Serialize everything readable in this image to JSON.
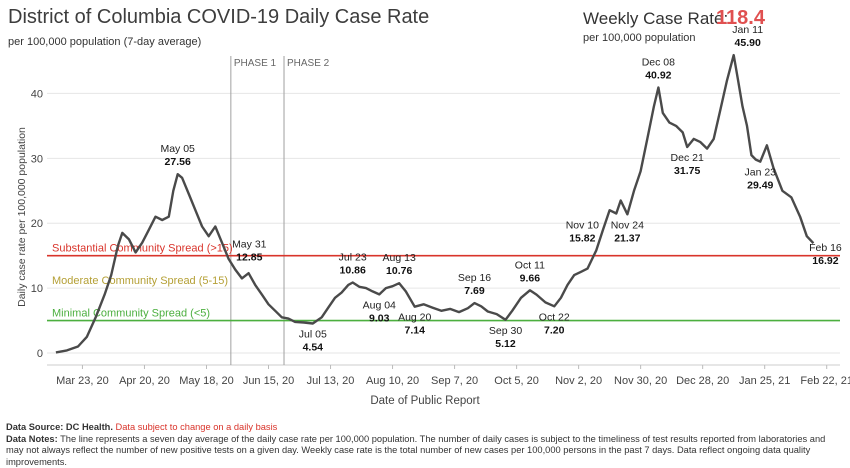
{
  "header": {
    "title": "District of Columbia COVID-19 Daily Case Rate",
    "subtitle": "per 100,000 population (7-day average)",
    "weekly_label": "Weekly Case Rate:",
    "weekly_value": "118.4",
    "weekly_sub": "per 100,000 population"
  },
  "notes": {
    "source_label": "Data Source: DC Health.",
    "source_warning": "Data subject to change on a daily basis",
    "notes_label": "Data Notes:",
    "notes_text": "The line represents a seven day average of the daily case rate per 100,000 population. The number of daily cases is subject to the timeliness of test results reported from laboratories and may not always reflect the number of new positive tests on a given day. Weekly case rate is the total number of new cases per 100,000 persons in the past 7 days. Data reflect ongoing data quality improvements."
  },
  "colors": {
    "line": "#4a4a4a",
    "substantial": "#d9342b",
    "moderate": "#b5a036",
    "minimal": "#4caf3f",
    "phase": "#a0a0a0",
    "axis_text": "#444444"
  },
  "chart_data": {
    "type": "line",
    "title": "",
    "xlabel": "Date of Public Report",
    "ylabel": "Daily case rate per 100,000 population",
    "ylim": [
      0,
      47
    ],
    "xlim": [
      "2020-03-07",
      "2021-02-28"
    ],
    "yticks": [
      0,
      10,
      20,
      30,
      40
    ],
    "grid": "horizontal",
    "xticks": [
      {
        "date": "2020-03-23",
        "label": "Mar 23, 20"
      },
      {
        "date": "2020-04-20",
        "label": "Apr 20, 20"
      },
      {
        "date": "2020-05-18",
        "label": "May 18, 20"
      },
      {
        "date": "2020-06-15",
        "label": "Jun 15, 20"
      },
      {
        "date": "2020-07-13",
        "label": "Jul 13, 20"
      },
      {
        "date": "2020-08-10",
        "label": "Aug 10, 20"
      },
      {
        "date": "2020-09-07",
        "label": "Sep 7, 20"
      },
      {
        "date": "2020-10-05",
        "label": "Oct 5, 20"
      },
      {
        "date": "2020-11-02",
        "label": "Nov 2, 20"
      },
      {
        "date": "2020-11-30",
        "label": "Nov 30, 20"
      },
      {
        "date": "2020-12-28",
        "label": "Dec 28, 20"
      },
      {
        "date": "2021-01-25",
        "label": "Jan 25, 21"
      },
      {
        "date": "2021-02-22",
        "label": "Feb 22, 21"
      }
    ],
    "thresholds": [
      {
        "name": "Substantial Community Spread (>15)",
        "y": 15,
        "color": "#d9342b"
      },
      {
        "name": "Moderate Community Spread (5-15)",
        "y": 10,
        "color": "#b5a036",
        "text_only": true
      },
      {
        "name": "Minimal Community Spread (<5)",
        "y": 5,
        "color": "#4caf3f"
      }
    ],
    "phases": [
      {
        "name": "PHASE 1",
        "date": "2020-05-29"
      },
      {
        "name": "PHASE 2",
        "date": "2020-06-22"
      }
    ],
    "series": [
      {
        "points": [
          [
            "2020-03-11",
            0.1
          ],
          [
            "2020-03-16",
            0.4
          ],
          [
            "2020-03-21",
            1.0
          ],
          [
            "2020-03-25",
            2.5
          ],
          [
            "2020-03-29",
            5.5
          ],
          [
            "2020-04-02",
            9.0
          ],
          [
            "2020-04-05",
            12.0
          ],
          [
            "2020-04-08",
            16.5
          ],
          [
            "2020-04-10",
            18.5
          ],
          [
            "2020-04-13",
            17.5
          ],
          [
            "2020-04-16",
            15.5
          ],
          [
            "2020-04-19",
            17.0
          ],
          [
            "2020-04-22",
            19.0
          ],
          [
            "2020-04-25",
            21.0
          ],
          [
            "2020-04-28",
            20.5
          ],
          [
            "2020-05-01",
            21.0
          ],
          [
            "2020-05-03",
            25.0
          ],
          [
            "2020-05-05",
            27.56
          ],
          [
            "2020-05-07",
            27.0
          ],
          [
            "2020-05-10",
            24.5
          ],
          [
            "2020-05-13",
            22.0
          ],
          [
            "2020-05-16",
            19.5
          ],
          [
            "2020-05-19",
            18.0
          ],
          [
            "2020-05-22",
            19.5
          ],
          [
            "2020-05-25",
            17.0
          ],
          [
            "2020-05-28",
            14.5
          ],
          [
            "2020-05-31",
            12.85
          ],
          [
            "2020-06-03",
            11.5
          ],
          [
            "2020-06-06",
            12.3
          ],
          [
            "2020-06-09",
            10.5
          ],
          [
            "2020-06-12",
            9.0
          ],
          [
            "2020-06-15",
            7.5
          ],
          [
            "2020-06-18",
            6.5
          ],
          [
            "2020-06-21",
            5.5
          ],
          [
            "2020-06-24",
            5.3
          ],
          [
            "2020-06-27",
            4.8
          ],
          [
            "2020-07-01",
            4.7
          ],
          [
            "2020-07-05",
            4.54
          ],
          [
            "2020-07-09",
            5.5
          ],
          [
            "2020-07-12",
            7.0
          ],
          [
            "2020-07-15",
            8.5
          ],
          [
            "2020-07-18",
            9.3
          ],
          [
            "2020-07-21",
            10.5
          ],
          [
            "2020-07-23",
            10.86
          ],
          [
            "2020-07-26",
            10.2
          ],
          [
            "2020-07-29",
            10.0
          ],
          [
            "2020-08-01",
            9.5
          ],
          [
            "2020-08-04",
            9.03
          ],
          [
            "2020-08-07",
            10.0
          ],
          [
            "2020-08-10",
            10.3
          ],
          [
            "2020-08-13",
            10.76
          ],
          [
            "2020-08-16",
            9.5
          ],
          [
            "2020-08-20",
            7.14
          ],
          [
            "2020-08-24",
            7.5
          ],
          [
            "2020-08-28",
            7.0
          ],
          [
            "2020-09-01",
            6.5
          ],
          [
            "2020-09-05",
            6.8
          ],
          [
            "2020-09-09",
            6.3
          ],
          [
            "2020-09-13",
            6.9
          ],
          [
            "2020-09-16",
            7.69
          ],
          [
            "2020-09-19",
            7.2
          ],
          [
            "2020-09-22",
            6.4
          ],
          [
            "2020-09-26",
            6.0
          ],
          [
            "2020-09-30",
            5.12
          ],
          [
            "2020-10-03",
            6.5
          ],
          [
            "2020-10-07",
            8.5
          ],
          [
            "2020-10-11",
            9.66
          ],
          [
            "2020-10-14",
            9.0
          ],
          [
            "2020-10-18",
            7.8
          ],
          [
            "2020-10-22",
            7.2
          ],
          [
            "2020-10-25",
            8.5
          ],
          [
            "2020-10-28",
            10.5
          ],
          [
            "2020-10-31",
            12.0
          ],
          [
            "2020-11-03",
            12.5
          ],
          [
            "2020-11-06",
            13.0
          ],
          [
            "2020-11-10",
            15.82
          ],
          [
            "2020-11-13",
            19.0
          ],
          [
            "2020-11-16",
            22.0
          ],
          [
            "2020-11-19",
            21.5
          ],
          [
            "2020-11-21",
            23.5
          ],
          [
            "2020-11-24",
            21.37
          ],
          [
            "2020-11-27",
            25.0
          ],
          [
            "2020-11-30",
            28.0
          ],
          [
            "2020-12-03",
            33.0
          ],
          [
            "2020-12-06",
            38.0
          ],
          [
            "2020-12-08",
            40.92
          ],
          [
            "2020-12-10",
            37.0
          ],
          [
            "2020-12-13",
            35.5
          ],
          [
            "2020-12-16",
            35.0
          ],
          [
            "2020-12-19",
            34.0
          ],
          [
            "2020-12-21",
            31.75
          ],
          [
            "2020-12-24",
            33.0
          ],
          [
            "2020-12-27",
            32.5
          ],
          [
            "2020-12-30",
            31.5
          ],
          [
            "2021-01-02",
            33.0
          ],
          [
            "2021-01-05",
            37.5
          ],
          [
            "2021-01-08",
            42.0
          ],
          [
            "2021-01-11",
            45.9
          ],
          [
            "2021-01-13",
            42.0
          ],
          [
            "2021-01-15",
            38.0
          ],
          [
            "2021-01-17",
            35.0
          ],
          [
            "2021-01-19",
            30.5
          ],
          [
            "2021-01-21",
            29.8
          ],
          [
            "2021-01-23",
            29.49
          ],
          [
            "2021-01-26",
            32.0
          ],
          [
            "2021-01-29",
            28.5
          ],
          [
            "2021-02-02",
            25.0
          ],
          [
            "2021-02-06",
            24.0
          ],
          [
            "2021-02-10",
            21.0
          ],
          [
            "2021-02-13",
            18.0
          ],
          [
            "2021-02-16",
            16.92
          ]
        ]
      }
    ],
    "annotations": [
      {
        "date_label": "May 05",
        "value": "27.56",
        "at": "2020-05-05",
        "y": 27.56,
        "pos": "above"
      },
      {
        "date_label": "May 31",
        "value": "12.85",
        "at": "2020-05-31",
        "y": 12.85,
        "pos": "above-right"
      },
      {
        "date_label": "Jul 05",
        "value": "4.54",
        "at": "2020-07-05",
        "y": 4.54,
        "pos": "below"
      },
      {
        "date_label": "Jul 23",
        "value": "10.86",
        "at": "2020-07-23",
        "y": 10.86,
        "pos": "above"
      },
      {
        "date_label": "Aug 13",
        "value": "10.76",
        "at": "2020-08-13",
        "y": 10.76,
        "pos": "above"
      },
      {
        "date_label": "Aug 04",
        "value": "9.03",
        "at": "2020-08-04",
        "y": 9.03,
        "pos": "below"
      },
      {
        "date_label": "Aug 20",
        "value": "7.14",
        "at": "2020-08-20",
        "y": 7.14,
        "pos": "below"
      },
      {
        "date_label": "Sep 16",
        "value": "7.69",
        "at": "2020-09-16",
        "y": 7.69,
        "pos": "above"
      },
      {
        "date_label": "Sep 30",
        "value": "5.12",
        "at": "2020-09-30",
        "y": 5.12,
        "pos": "below"
      },
      {
        "date_label": "Oct 11",
        "value": "9.66",
        "at": "2020-10-11",
        "y": 9.66,
        "pos": "above"
      },
      {
        "date_label": "Oct 22",
        "value": "7.20",
        "at": "2020-10-22",
        "y": 7.2,
        "pos": "below"
      },
      {
        "date_label": "Nov 10",
        "value": "15.82",
        "at": "2020-11-10",
        "y": 15.82,
        "pos": "above-left"
      },
      {
        "date_label": "Nov 24",
        "value": "21.37",
        "at": "2020-11-24",
        "y": 21.37,
        "pos": "below"
      },
      {
        "date_label": "Dec 08",
        "value": "40.92",
        "at": "2020-12-08",
        "y": 40.92,
        "pos": "above"
      },
      {
        "date_label": "Dec 21",
        "value": "31.75",
        "at": "2020-12-21",
        "y": 31.75,
        "pos": "below"
      },
      {
        "date_label": "Jan 11",
        "value": "45.90",
        "at": "2021-01-11",
        "y": 45.9,
        "pos": "above-right"
      },
      {
        "date_label": "Jan 23",
        "value": "29.49",
        "at": "2021-01-23",
        "y": 29.49,
        "pos": "below"
      },
      {
        "date_label": "Feb 16",
        "value": "16.92",
        "at": "2021-02-16",
        "y": 16.92,
        "pos": "below-right"
      }
    ]
  }
}
